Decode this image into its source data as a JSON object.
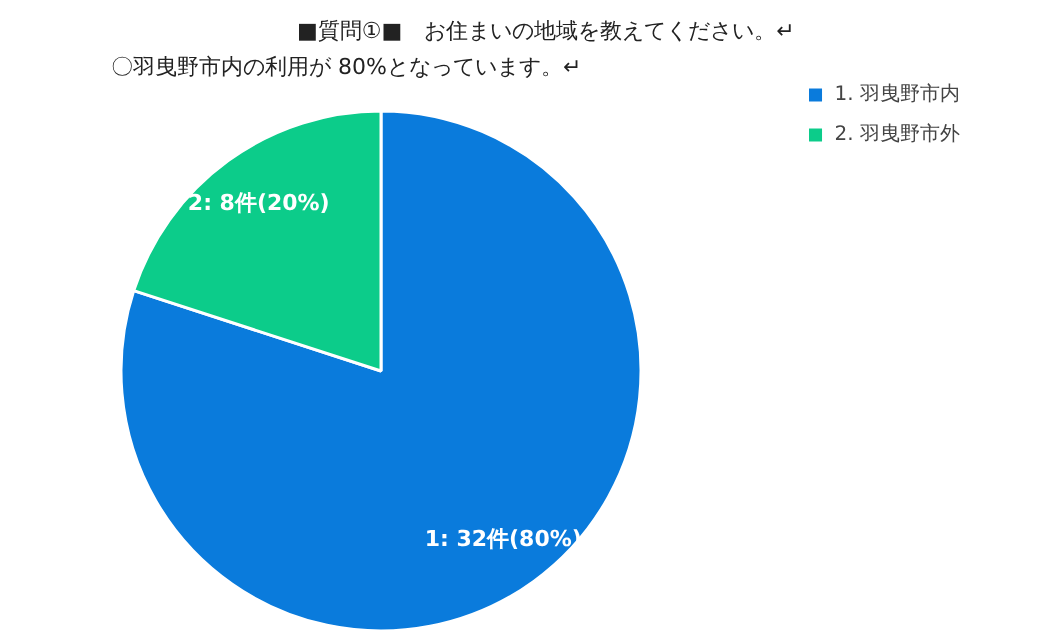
{
  "chart_data": {
    "type": "pie",
    "title": "■質問①■　お住まいの地域を教えてください。↵",
    "subtitle": "〇羽曳野市内の利用が 80%となっています。↵",
    "categories": [
      "1. 羽曳野市内",
      "2. 羽曳野市外"
    ],
    "values": [
      32,
      8
    ],
    "colors": [
      "#0a7bdc",
      "#0ccc8a"
    ],
    "value_labels": [
      "1: 32件(80%)",
      "2: 8件(20%)"
    ],
    "legend": "top right"
  }
}
